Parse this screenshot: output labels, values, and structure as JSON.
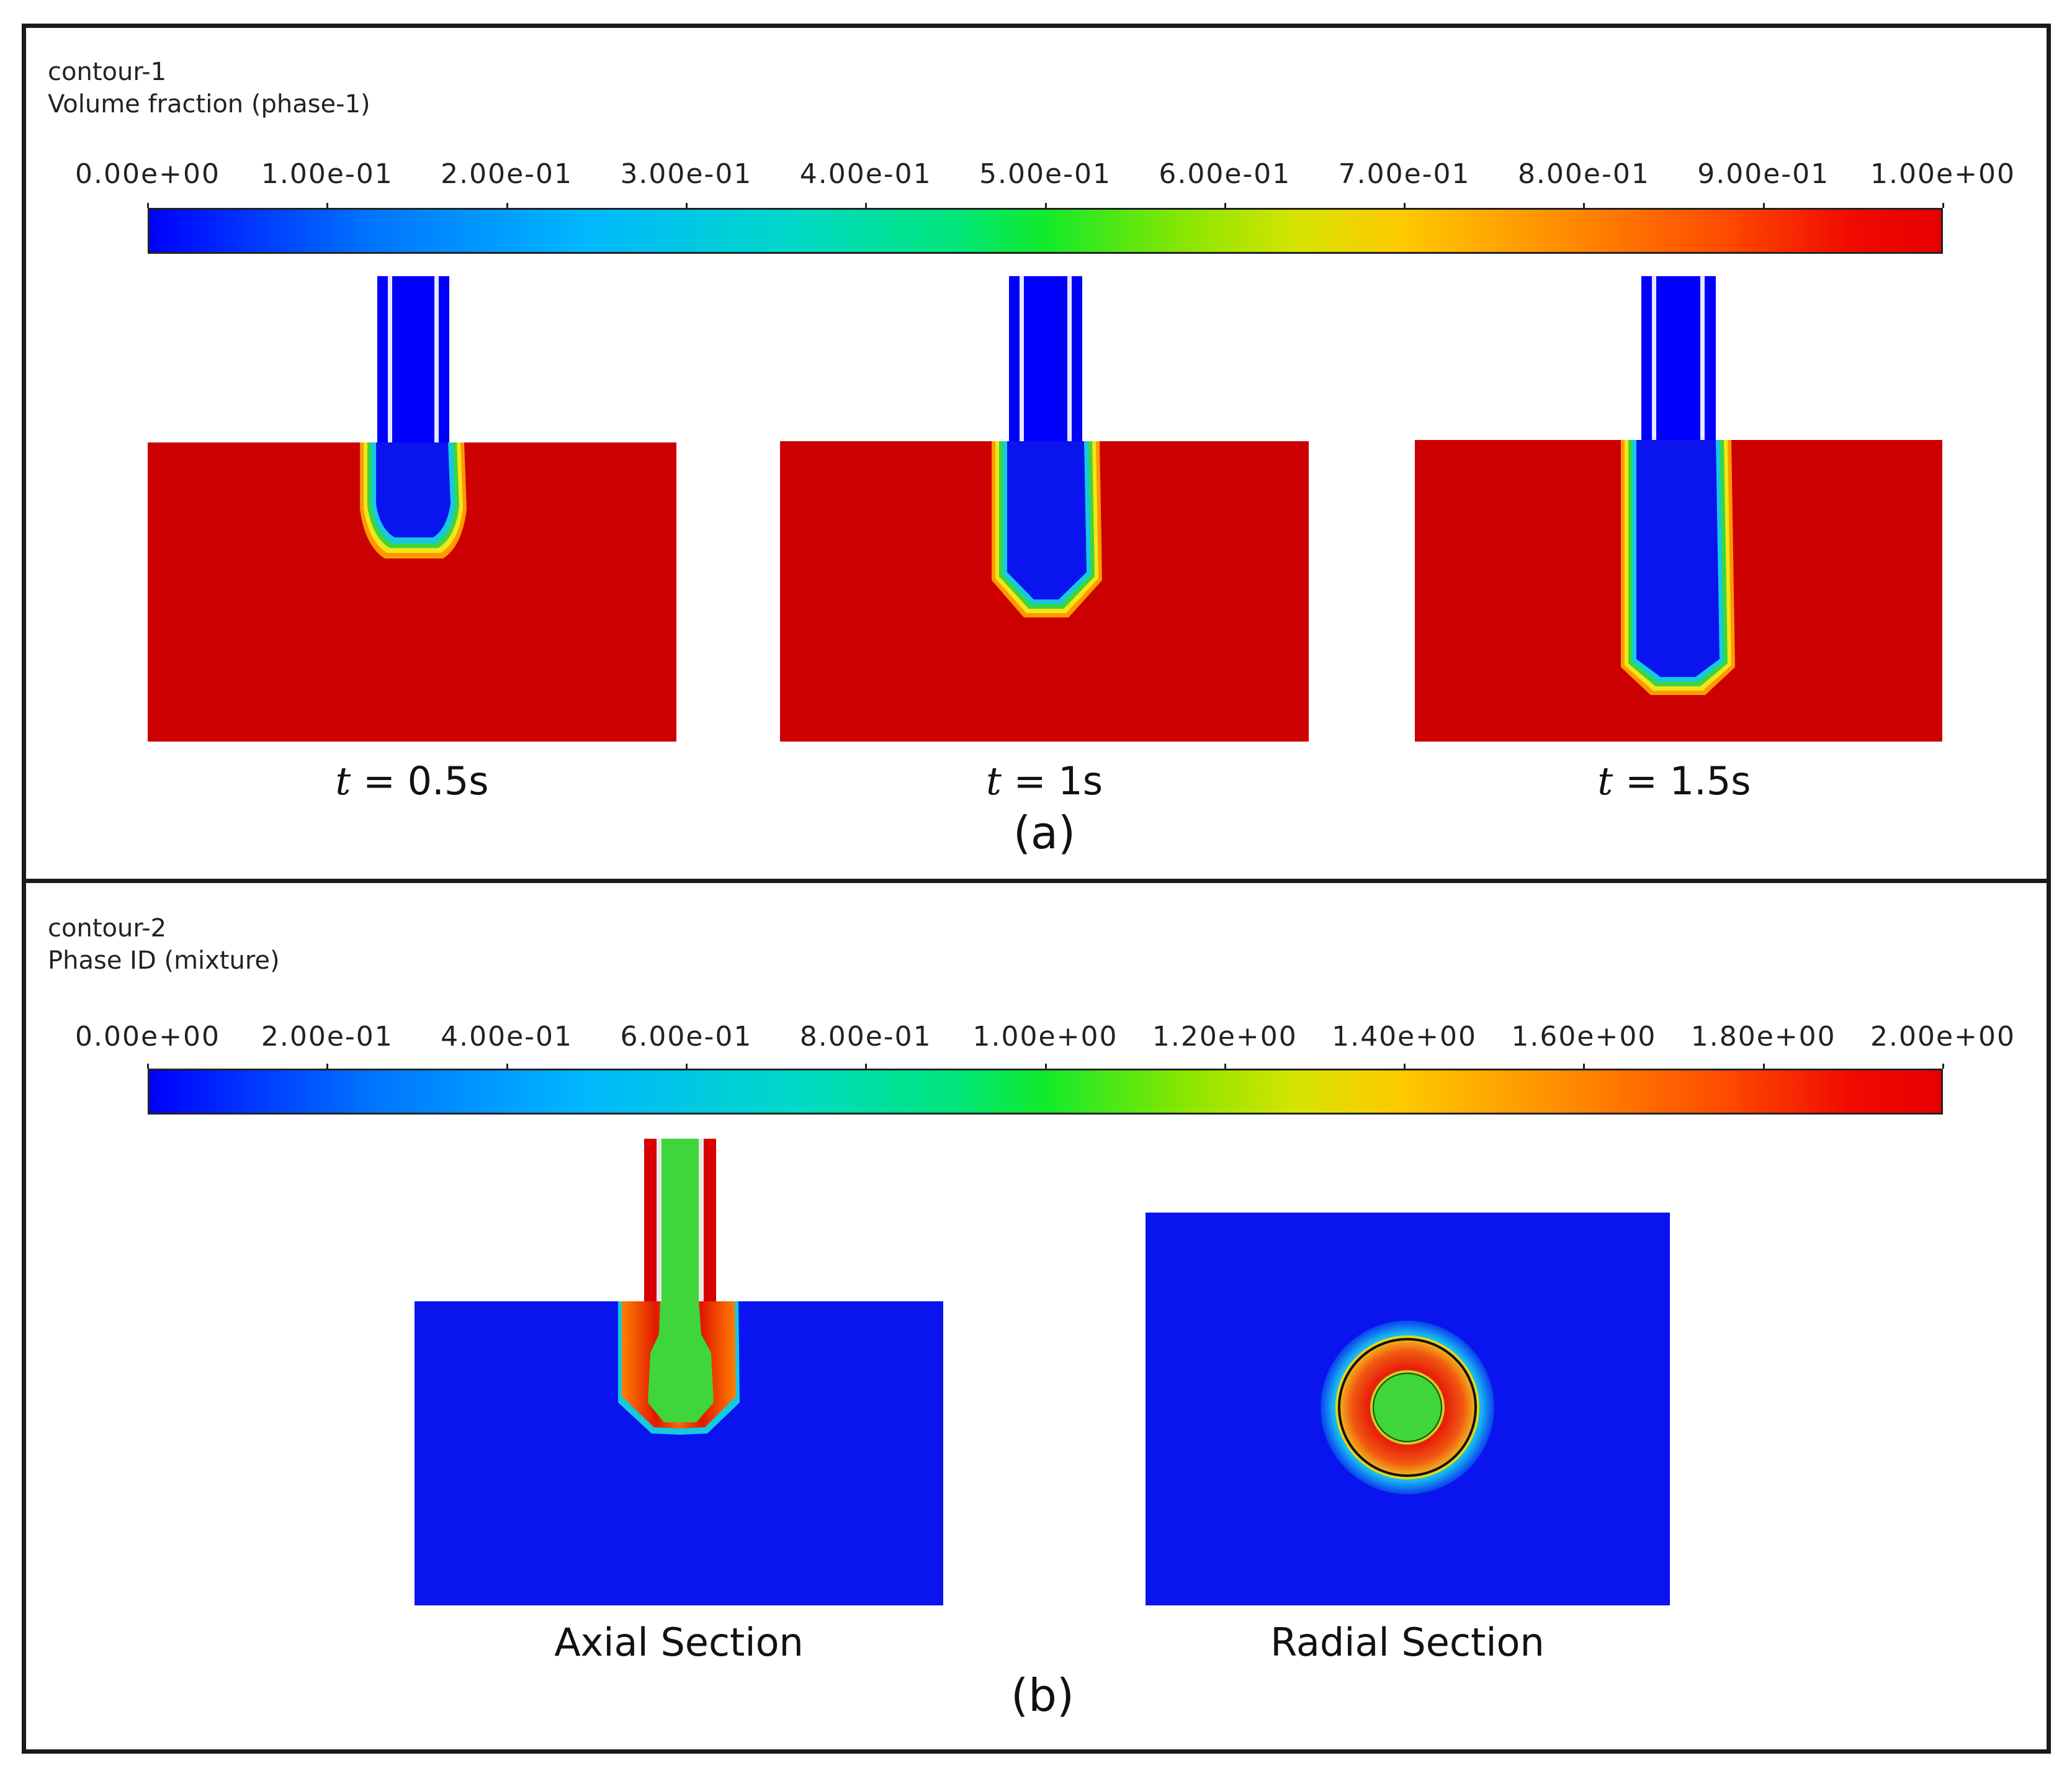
{
  "panel_a": {
    "title_line1": "contour-1",
    "title_line2": "Volume fraction (phase-1)",
    "colorbar_ticks": [
      "0.00e+00",
      "1.00e-01",
      "2.00e-01",
      "3.00e-01",
      "4.00e-01",
      "5.00e-01",
      "6.00e-01",
      "7.00e-01",
      "8.00e-01",
      "9.00e-01",
      "1.00e+00"
    ],
    "captions": [
      {
        "var": "t",
        "rest": " = 0.5s"
      },
      {
        "var": "t",
        "rest": " = 1s"
      },
      {
        "var": "t",
        "rest": " = 1.5s"
      }
    ],
    "label": "(a)"
  },
  "panel_b": {
    "title_line1": "contour-2",
    "title_line2": "Phase ID (mixture)",
    "colorbar_ticks": [
      "0.00e+00",
      "2.00e-01",
      "4.00e-01",
      "6.00e-01",
      "8.00e-01",
      "1.00e+00",
      "1.20e+00",
      "1.40e+00",
      "1.60e+00",
      "1.80e+00",
      "2.00e+00"
    ],
    "captions": [
      "Axial Section",
      "Radial Section"
    ],
    "label": "(b)"
  },
  "colors": {
    "blue": "#0000ff",
    "deep_blue": "#0a14ee",
    "red": "#cc0000",
    "green": "#3ed63a",
    "orange": "#f05a10",
    "cyan": "#16c8e0",
    "yellow": "#f2e51a"
  }
}
